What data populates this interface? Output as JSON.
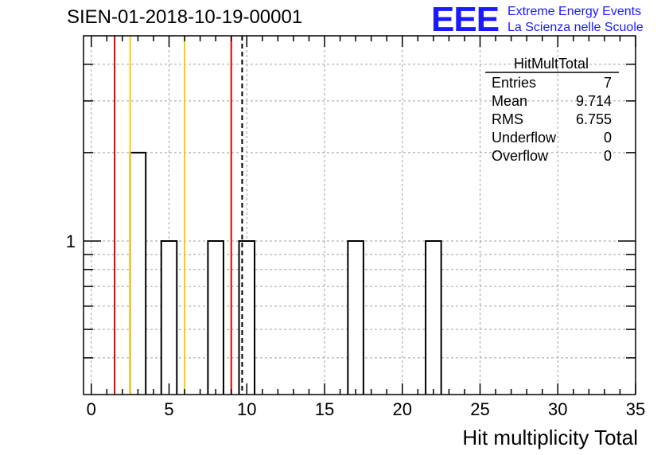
{
  "header": {
    "run_title": "SIEN-01-2018-10-19-00001",
    "logo_mark": "EEE",
    "logo_line1": "Extreme Energy Events",
    "logo_line2": "La Scienza nelle Scuole"
  },
  "stats": {
    "name": "HitMultTotal",
    "rows": [
      {
        "label": "Entries",
        "value": "7"
      },
      {
        "label": "Mean",
        "value": "9.714"
      },
      {
        "label": "RMS",
        "value": "6.755"
      },
      {
        "label": "Underflow",
        "value": "0"
      },
      {
        "label": "Overflow",
        "value": "0"
      }
    ]
  },
  "colors": {
    "red_line": "#e00000",
    "yellow_line": "#ffcc00",
    "grid": "#a0a0a0",
    "logo": "#1a1aff"
  },
  "chart_data": {
    "type": "bar",
    "title": "SIEN-01-2018-10-19-00001",
    "xlabel": "Hit multiplicity Total",
    "ylabel": "",
    "xlim": [
      -0.5,
      35
    ],
    "ylim": [
      0.3,
      5
    ],
    "yscale": "log",
    "bin_width": 1,
    "bins": [
      {
        "x": 3,
        "count": 2
      },
      {
        "x": 5,
        "count": 1
      },
      {
        "x": 8,
        "count": 1
      },
      {
        "x": 10,
        "count": 1
      },
      {
        "x": 17,
        "count": 1
      },
      {
        "x": 22,
        "count": 1
      }
    ],
    "x_ticks": [
      0,
      5,
      10,
      15,
      20,
      25,
      30,
      35
    ],
    "x_tick_labels": [
      "0",
      "5",
      "10",
      "15",
      "20",
      "25",
      "30",
      "35"
    ],
    "y_tick_labels": [
      {
        "value": 1,
        "label": "1"
      }
    ],
    "vertical_lines": [
      {
        "name": "red-line-low",
        "x": 1.5,
        "color": "#e00000",
        "style": "solid"
      },
      {
        "name": "yellow-line-low",
        "x": 2.5,
        "color": "#ffcc00",
        "style": "solid"
      },
      {
        "name": "yellow-line-high",
        "x": 6,
        "color": "#ffcc00",
        "style": "solid"
      },
      {
        "name": "red-line-high",
        "x": 9,
        "color": "#e00000",
        "style": "solid"
      },
      {
        "name": "mean-line",
        "x": 9.7,
        "color": "#000000",
        "style": "dashed"
      }
    ]
  }
}
